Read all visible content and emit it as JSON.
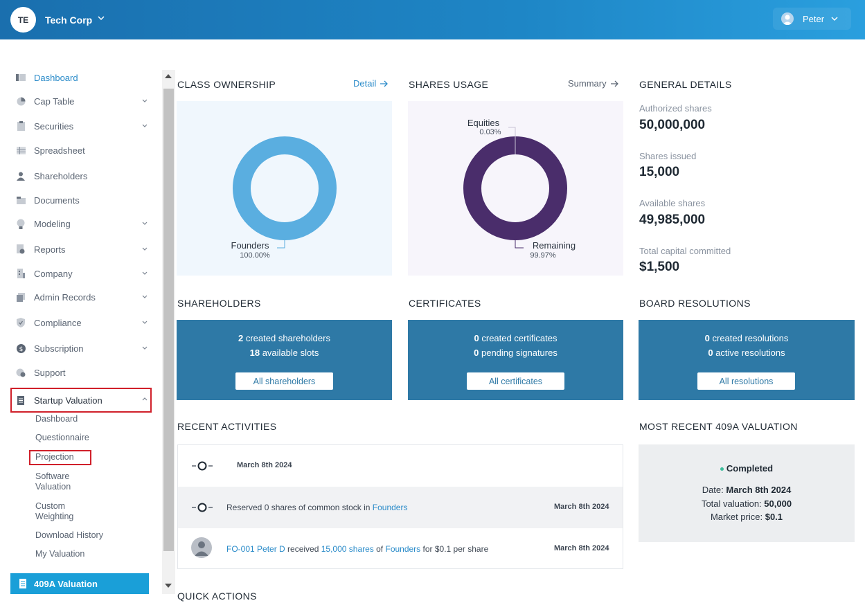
{
  "header": {
    "org_initials": "TE",
    "org_name": "Tech Corp",
    "user_name": "Peter"
  },
  "sidebar": {
    "items": [
      {
        "label": "Dashboard",
        "icon": "dashboard-icon",
        "active": true
      },
      {
        "label": "Cap Table",
        "icon": "pie-chart-icon",
        "expandable": true
      },
      {
        "label": "Securities",
        "icon": "clipboard-icon",
        "expandable": true
      },
      {
        "label": "Spreadsheet",
        "icon": "table-icon"
      },
      {
        "label": "Shareholders",
        "icon": "person-icon"
      },
      {
        "label": "Documents",
        "icon": "folder-icon"
      },
      {
        "label": "Modeling",
        "icon": "lightbulb-icon",
        "expandable": true
      },
      {
        "label": "Reports",
        "icon": "report-icon",
        "expandable": true
      },
      {
        "label": "Company",
        "icon": "building-icon",
        "expandable": true
      },
      {
        "label": "Admin Records",
        "icon": "records-icon",
        "expandable": true
      },
      {
        "label": "Compliance",
        "icon": "shield-icon",
        "expandable": true
      },
      {
        "label": "Subscription",
        "icon": "dollar-icon",
        "expandable": true
      },
      {
        "label": "Support",
        "icon": "support-icon"
      },
      {
        "label": "Startup Valuation",
        "icon": "document-icon",
        "expanded": true
      }
    ],
    "startup_valuation_sub": [
      "Dashboard",
      "Questionnaire",
      "Projection",
      "Software Valuation",
      "Custom Weighting",
      "Download History",
      "My Valuation"
    ],
    "valuation_409a_label": "409A Valuation"
  },
  "class_ownership": {
    "title": "CLASS OWNERSHIP",
    "link": "Detail",
    "slice_label": "Founders",
    "slice_pct": "100.00%",
    "color": "#5aaee0"
  },
  "shares_usage": {
    "title": "SHARES USAGE",
    "link": "Summary",
    "equities_label": "Equities",
    "equities_pct": "0.03%",
    "remaining_label": "Remaining",
    "remaining_pct": "99.97%",
    "color": "#4a2d6b"
  },
  "general_details": {
    "title": "GENERAL DETAILS",
    "items": [
      {
        "label": "Authorized shares",
        "value": "50,000,000"
      },
      {
        "label": "Shares issued",
        "value": "15,000"
      },
      {
        "label": "Available shares",
        "value": "49,985,000"
      },
      {
        "label": "Total capital committed",
        "value": "$1,500"
      }
    ]
  },
  "shareholders": {
    "title": "SHAREHOLDERS",
    "n1": "2",
    "t1": " created shareholders",
    "n2": "18",
    "t2": " available slots",
    "button": "All shareholders"
  },
  "certificates": {
    "title": "CERTIFICATES",
    "n1": "0",
    "t1": " created certificates",
    "n2": "0",
    "t2": " pending signatures",
    "button": "All certificates"
  },
  "board_resolutions": {
    "title": "BOARD RESOLUTIONS",
    "n1": "0",
    "t1": " created resolutions",
    "n2": "0",
    "t2": " active resolutions",
    "button": "All resolutions"
  },
  "recent_activities": {
    "title": "RECENT ACTIVITIES",
    "rows": [
      {
        "date": "March 8th 2024"
      },
      {
        "pre": "Reserved 0 shares of common stock in ",
        "link": "Founders",
        "date": "March 8th 2024"
      },
      {
        "link1": "FO-001 Peter D",
        "mid1": " received ",
        "link2": "15,000 shares",
        "mid2": " of ",
        "link3": "Founders",
        "post": " for $0.1 per share",
        "date": "March 8th 2024"
      }
    ]
  },
  "valuation_409a": {
    "title": "MOST RECENT 409A VALUATION",
    "status": "Completed",
    "date_label": "Date: ",
    "date_value": "March 8th 2024",
    "total_label": "Total valuation: ",
    "total_value": "50,000",
    "market_label": "Market price: ",
    "market_value": "$0.1"
  },
  "quick_actions": {
    "title": "QUICK ACTIONS"
  }
}
